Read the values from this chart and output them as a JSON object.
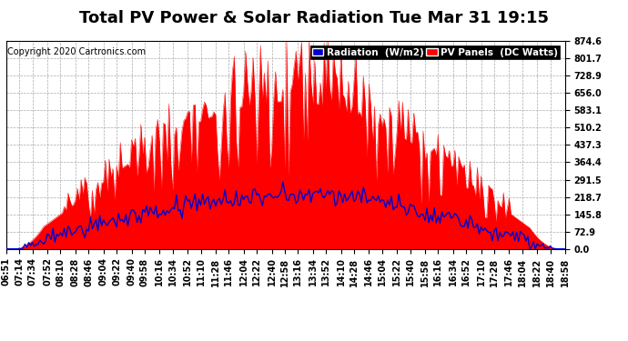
{
  "title": "Total PV Power & Solar Radiation Tue Mar 31 19:15",
  "copyright": "Copyright 2020 Cartronics.com",
  "yticks": [
    0.0,
    72.9,
    145.8,
    218.7,
    291.5,
    364.4,
    437.3,
    510.2,
    583.1,
    656.0,
    728.9,
    801.7,
    874.6
  ],
  "ymax": 874.6,
  "ymin": 0.0,
  "bg_color": "#ffffff",
  "plot_bg_color": "#ffffff",
  "grid_color": "#aaaaaa",
  "pv_color": "#ff0000",
  "radiation_color": "#0000cc",
  "title_fontsize": 13,
  "copyright_fontsize": 7,
  "tick_fontsize": 7,
  "legend_fontsize": 7.5,
  "x_labels": [
    "06:51",
    "07:14",
    "07:34",
    "07:52",
    "08:10",
    "08:28",
    "08:46",
    "09:04",
    "09:22",
    "09:40",
    "09:58",
    "10:16",
    "10:34",
    "10:52",
    "11:10",
    "11:28",
    "11:46",
    "12:04",
    "12:22",
    "12:40",
    "12:58",
    "13:16",
    "13:34",
    "13:52",
    "14:10",
    "14:28",
    "14:46",
    "15:04",
    "15:22",
    "15:40",
    "15:58",
    "16:16",
    "16:34",
    "16:52",
    "17:10",
    "17:28",
    "17:46",
    "18:04",
    "18:22",
    "18:40",
    "18:58"
  ]
}
